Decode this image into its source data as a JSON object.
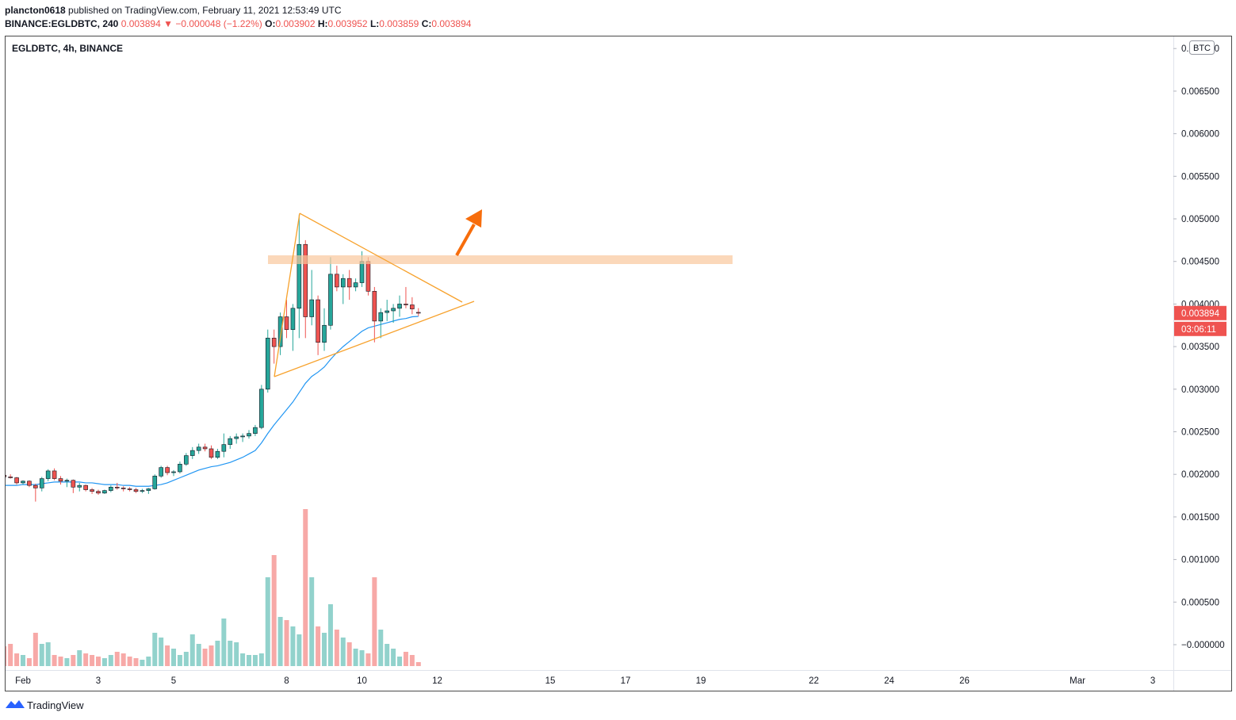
{
  "header": {
    "user": "plancton0618",
    "published": "published on TradingView.com, February 11, 2021 12:53:49 UTC",
    "symbol": "BINANCE:EGLDBTC, 240",
    "arrow": "▼",
    "change": "−0.000048",
    "change_pct": "(−1.22%)",
    "o_label": "O:",
    "h_label": "H:",
    "l_label": "L:",
    "c_label": "C:"
  },
  "chart_data": {
    "type": "candlestick",
    "legend_title": "EGLDBTC, 4h, BINANCE",
    "currency": "BTC",
    "countdown": "03:06:11",
    "up_color": "#26a69a",
    "down_color": "#ef5350",
    "ma_color": "#2196f3",
    "ylim": [
      -0.000298,
      0.007151
    ],
    "yticks": [
      {
        "value": 0,
        "label": "−0.000000"
      },
      {
        "value": 0.0005,
        "label": "0.000500"
      },
      {
        "value": 0.001,
        "label": "0.001000"
      },
      {
        "value": 0.0015,
        "label": "0.001500"
      },
      {
        "value": 0.002,
        "label": "0.002000"
      },
      {
        "value": 0.0025,
        "label": "0.002500"
      },
      {
        "value": 0.003,
        "label": "0.003000"
      },
      {
        "value": 0.0035,
        "label": "0.003500"
      },
      {
        "value": 0.004,
        "label": "0.004000"
      },
      {
        "value": 0.0045,
        "label": "0.004500"
      },
      {
        "value": 0.005,
        "label": "0.005000"
      },
      {
        "value": 0.0055,
        "label": "0.005500"
      },
      {
        "value": 0.006,
        "label": "0.006000"
      },
      {
        "value": 0.0065,
        "label": "0.006500"
      },
      {
        "value": 0.007,
        "label": "0.007000"
      }
    ],
    "categories": [
      null,
      null,
      null,
      "Feb",
      null,
      null,
      null,
      null,
      null,
      null,
      null,
      null,
      null,
      null,
      null,
      "3",
      null,
      null,
      null,
      null,
      null,
      null,
      null,
      null,
      null,
      null,
      null,
      "5",
      null,
      null,
      null,
      null,
      null,
      null,
      null,
      null,
      null,
      null,
      null,
      null,
      null,
      null,
      null,
      null,
      null,
      "8",
      null,
      null,
      null,
      null,
      null,
      null,
      null,
      null,
      null,
      null,
      null,
      "10",
      null,
      null,
      null,
      null,
      null,
      null,
      null,
      null,
      null,
      null,
      null,
      "12",
      null,
      null,
      null,
      null,
      null,
      null,
      null,
      null,
      null,
      null,
      null,
      null,
      null,
      null,
      null,
      null,
      null,
      "15",
      null,
      null,
      null,
      null,
      null,
      null,
      null,
      null,
      null,
      null,
      null,
      "17",
      null,
      null,
      null,
      null,
      null,
      null,
      null,
      null,
      null,
      null,
      null,
      "19",
      null,
      null,
      null,
      null,
      null,
      null,
      null,
      null,
      null,
      null,
      null,
      null,
      null,
      null,
      null,
      null,
      null,
      "22",
      null,
      null,
      null,
      null,
      null,
      null,
      null,
      null,
      null,
      null,
      null,
      "24",
      null,
      null,
      null,
      null,
      null,
      null,
      null,
      null,
      null,
      null,
      null,
      "26",
      null,
      null,
      null,
      null,
      null,
      null,
      null,
      null,
      null,
      null,
      null,
      null,
      null,
      null,
      null,
      null,
      null,
      "Mar",
      null,
      null,
      null,
      null,
      null,
      null,
      null,
      null,
      null,
      null,
      null,
      "3",
      null,
      null,
      null
    ],
    "open": [
      0.00199,
      0.00197,
      0.00196,
      0.0019,
      0.00192,
      0.00187,
      0.00184,
      0.00195,
      0.00204,
      0.00195,
      0.00192,
      0.00193,
      0.00185,
      0.00187,
      0.00182,
      0.0018,
      0.00178,
      0.00181,
      0.00185,
      0.00184,
      0.00183,
      0.00182,
      0.0018,
      0.00181,
      0.00183,
      0.00198,
      0.00208,
      0.00202,
      0.00203,
      0.00212,
      0.00222,
      0.00228,
      0.00232,
      0.0023,
      0.0022,
      0.00227,
      0.00235,
      0.00242,
      0.00244,
      0.00245,
      0.00248,
      0.00255,
      0.003,
      0.0036,
      0.0035,
      0.00385,
      0.0037,
      0.00395,
      0.0047,
      0.00385,
      0.00405,
      0.00355,
      0.00375,
      0.00435,
      0.0042,
      0.0043,
      0.0042,
      0.00425,
      0.0045,
      0.00415,
      0.0038,
      0.0039,
      0.00392,
      0.00395,
      0.004,
      0.00399,
      0.003902,
      null,
      null,
      null,
      null,
      null,
      null,
      null,
      null,
      null,
      null,
      null,
      null,
      null,
      null,
      null,
      null,
      null,
      null,
      null,
      null,
      null,
      null,
      null,
      null,
      null,
      null,
      null,
      null,
      null,
      null,
      null,
      null,
      null,
      null,
      null,
      null,
      null,
      null,
      null,
      null,
      null,
      null,
      null,
      null,
      null,
      null,
      null,
      null,
      null,
      null,
      null,
      null,
      null,
      null,
      null,
      null,
      null,
      null,
      null,
      null,
      null,
      null,
      null,
      null,
      null,
      null,
      null,
      null,
      null,
      null,
      null,
      null,
      null,
      null,
      null,
      null,
      null,
      null,
      null,
      null,
      null,
      null,
      null,
      null,
      null,
      null,
      null,
      null,
      null,
      null,
      null,
      null,
      null,
      null,
      null,
      null,
      null,
      null,
      null,
      null,
      null,
      null,
      null,
      null,
      null,
      null,
      null,
      null,
      null,
      null,
      null,
      null,
      null,
      null,
      null,
      null,
      null,
      null,
      null,
      null
    ],
    "high": [
      0.002,
      0.002,
      0.00197,
      0.00193,
      0.00193,
      0.00189,
      0.00197,
      0.00206,
      0.00207,
      0.00198,
      0.00195,
      0.00194,
      0.0019,
      0.00188,
      0.00184,
      0.00182,
      0.00182,
      0.00187,
      0.0019,
      0.00186,
      0.00185,
      0.00184,
      0.00183,
      0.00184,
      0.002,
      0.0021,
      0.0021,
      0.00205,
      0.00215,
      0.00225,
      0.00232,
      0.00236,
      0.00236,
      0.00234,
      0.0023,
      0.00248,
      0.00245,
      0.00248,
      0.00248,
      0.00252,
      0.00258,
      0.00305,
      0.0037,
      0.0037,
      0.0039,
      0.00405,
      0.004,
      0.00505,
      0.00475,
      0.0044,
      0.0041,
      0.00395,
      0.00455,
      0.00445,
      0.00435,
      0.0044,
      0.0043,
      0.00462,
      0.00455,
      0.0042,
      0.00395,
      0.00405,
      0.004,
      0.0041,
      0.0042,
      0.00408,
      0.003952,
      null,
      null,
      null,
      null,
      null,
      null,
      null,
      null,
      null,
      null,
      null,
      null,
      null,
      null,
      null,
      null,
      null,
      null,
      null,
      null,
      null,
      null,
      null,
      null,
      null,
      null,
      null,
      null,
      null,
      null,
      null,
      null,
      null,
      null,
      null,
      null,
      null,
      null,
      null,
      null,
      null,
      null,
      null,
      null,
      null,
      null,
      null,
      null,
      null,
      null,
      null,
      null,
      null,
      null,
      null,
      null,
      null,
      null,
      null,
      null,
      null,
      null,
      null,
      null,
      null,
      null,
      null,
      null,
      null,
      null,
      null,
      null,
      null,
      null,
      null,
      null,
      null,
      null,
      null,
      null,
      null,
      null,
      null,
      null,
      null,
      null,
      null,
      null,
      null,
      null,
      null,
      null,
      null,
      null,
      null,
      null,
      null,
      null,
      null,
      null,
      null,
      null,
      null,
      null,
      null,
      null,
      null,
      null,
      null,
      null,
      null,
      null,
      null,
      null,
      null,
      null,
      null,
      null,
      null,
      null
    ],
    "low": [
      0.00196,
      0.00195,
      0.00188,
      0.00188,
      0.00185,
      0.00168,
      0.0018,
      0.00192,
      0.00193,
      0.00188,
      0.00185,
      0.00178,
      0.0018,
      0.0018,
      0.00177,
      0.00176,
      0.00177,
      0.00179,
      0.00182,
      0.0018,
      0.0018,
      0.00178,
      0.00178,
      0.00177,
      0.00182,
      0.00196,
      0.00199,
      0.00198,
      0.00201,
      0.0021,
      0.00218,
      0.00224,
      0.00227,
      0.00218,
      0.00218,
      0.0022,
      0.0023,
      0.00236,
      0.00238,
      0.00242,
      0.00245,
      0.00253,
      0.00296,
      0.0033,
      0.0034,
      0.0036,
      0.00345,
      0.0036,
      0.0036,
      0.00375,
      0.0034,
      0.00345,
      0.0037,
      0.00415,
      0.004,
      0.00405,
      0.00415,
      0.0042,
      0.0041,
      0.00355,
      0.0036,
      0.0038,
      0.00378,
      0.00385,
      0.00395,
      0.00388,
      0.003859,
      null,
      null,
      null,
      null,
      null,
      null,
      null,
      null,
      null,
      null,
      null,
      null,
      null,
      null,
      null,
      null,
      null,
      null,
      null,
      null,
      null,
      null,
      null,
      null,
      null,
      null,
      null,
      null,
      null,
      null,
      null,
      null,
      null,
      null,
      null,
      null,
      null,
      null,
      null,
      null,
      null,
      null,
      null,
      null,
      null,
      null,
      null,
      null,
      null,
      null,
      null,
      null,
      null,
      null,
      null,
      null,
      null,
      null,
      null,
      null,
      null,
      null,
      null,
      null,
      null,
      null,
      null,
      null,
      null,
      null,
      null,
      null,
      null,
      null,
      null,
      null,
      null,
      null,
      null,
      null,
      null,
      null,
      null,
      null,
      null,
      null,
      null,
      null,
      null,
      null,
      null,
      null,
      null,
      null,
      null,
      null,
      null,
      null,
      null,
      null,
      null,
      null,
      null,
      null,
      null,
      null,
      null,
      null,
      null,
      null,
      null,
      null,
      null,
      null,
      null,
      null,
      null,
      null,
      null,
      null
    ],
    "close": [
      0.00197,
      0.00196,
      0.0019,
      0.00192,
      0.00187,
      0.00184,
      0.00195,
      0.00204,
      0.00195,
      0.00192,
      0.00193,
      0.00185,
      0.00187,
      0.00182,
      0.0018,
      0.00178,
      0.00181,
      0.00185,
      0.00184,
      0.00183,
      0.00182,
      0.0018,
      0.00181,
      0.00183,
      0.00198,
      0.00208,
      0.00202,
      0.00203,
      0.00212,
      0.00222,
      0.00228,
      0.00232,
      0.0023,
      0.0022,
      0.00227,
      0.00235,
      0.00242,
      0.00244,
      0.00245,
      0.00248,
      0.00255,
      0.003,
      0.0036,
      0.0035,
      0.00385,
      0.0037,
      0.00395,
      0.0047,
      0.00385,
      0.00405,
      0.00355,
      0.00375,
      0.00435,
      0.0042,
      0.0043,
      0.0042,
      0.00425,
      0.0045,
      0.00415,
      0.0038,
      0.0039,
      0.00392,
      0.00395,
      0.004,
      0.00399,
      0.003942,
      0.003894,
      null,
      null,
      null,
      null,
      null,
      null,
      null,
      null,
      null,
      null,
      null,
      null,
      null,
      null,
      null,
      null,
      null,
      null,
      null,
      null,
      null,
      null,
      null,
      null,
      null,
      null,
      null,
      null,
      null,
      null,
      null,
      null,
      null,
      null,
      null,
      null,
      null,
      null,
      null,
      null,
      null,
      null,
      null,
      null,
      null,
      null,
      null,
      null,
      null,
      null,
      null,
      null,
      null,
      null,
      null,
      null,
      null,
      null,
      null,
      null,
      null,
      null,
      null,
      null,
      null,
      null,
      null,
      null,
      null,
      null,
      null,
      null,
      null,
      null,
      null,
      null,
      null,
      null,
      null,
      null,
      null,
      null,
      null,
      null,
      null,
      null,
      null,
      null,
      null,
      null,
      null,
      null,
      null,
      null,
      null,
      null,
      null,
      null,
      null,
      null,
      null,
      null,
      null,
      null,
      null,
      null,
      null,
      null,
      null,
      null,
      null,
      null,
      null,
      null,
      null,
      null,
      null,
      null,
      null,
      null
    ],
    "ma": [
      0.00187,
      0.00187,
      0.00187,
      0.00188,
      0.00188,
      0.00188,
      0.00189,
      0.0019,
      0.00191,
      0.00191,
      0.00191,
      0.00191,
      0.00191,
      0.0019,
      0.0019,
      0.00189,
      0.00188,
      0.00188,
      0.00188,
      0.00187,
      0.00187,
      0.00186,
      0.00186,
      0.00186,
      0.00187,
      0.00188,
      0.0019,
      0.00193,
      0.00196,
      0.00199,
      0.00202,
      0.00205,
      0.00207,
      0.00209,
      0.0021,
      0.00212,
      0.00214,
      0.00217,
      0.0022,
      0.00224,
      0.00228,
      0.00237,
      0.00248,
      0.00258,
      0.00267,
      0.00276,
      0.00285,
      0.00296,
      0.00307,
      0.00315,
      0.0032,
      0.00326,
      0.00335,
      0.00343,
      0.0035,
      0.00356,
      0.00362,
      0.00368,
      0.00372,
      0.00374,
      0.00376,
      0.00378,
      0.0038,
      0.00382,
      0.00383,
      0.00385,
      0.003855,
      null,
      null,
      null,
      null,
      null,
      null,
      null,
      null,
      null,
      null,
      null,
      null,
      null,
      null,
      null,
      null,
      null,
      null,
      null,
      null,
      null,
      null,
      null,
      null,
      null,
      null,
      null,
      null,
      null,
      null,
      null,
      null,
      null,
      null,
      null,
      null,
      null,
      null,
      null,
      null,
      null,
      null,
      null,
      null,
      null,
      null,
      null,
      null,
      null,
      null,
      null,
      null,
      null,
      null,
      null,
      null,
      null,
      null,
      null,
      null,
      null,
      null,
      null,
      null,
      null,
      null,
      null,
      null,
      null,
      null,
      null,
      null,
      null,
      null,
      null,
      null,
      null,
      null,
      null,
      null,
      null,
      null,
      null,
      null,
      null,
      null,
      null,
      null,
      null,
      null,
      null,
      null,
      null,
      null,
      null,
      null,
      null,
      null,
      null,
      null,
      null,
      null,
      null,
      null,
      null,
      null,
      null,
      null,
      null,
      null,
      null,
      null,
      null,
      null,
      null,
      null,
      null,
      null,
      null,
      null
    ],
    "volume": [
      25,
      28,
      16,
      14,
      10,
      42,
      28,
      30,
      14,
      12,
      10,
      14,
      20,
      16,
      14,
      12,
      10,
      14,
      18,
      16,
      12,
      10,
      8,
      12,
      42,
      36,
      26,
      22,
      14,
      18,
      40,
      28,
      22,
      26,
      32,
      60,
      32,
      30,
      16,
      14,
      14,
      16,
      112,
      140,
      62,
      58,
      50,
      40,
      198,
      112,
      50,
      42,
      78,
      46,
      36,
      30,
      22,
      20,
      16,
      112,
      46,
      28,
      22,
      12,
      18,
      14,
      5,
      null,
      null,
      null,
      null,
      null,
      null,
      null,
      null,
      null,
      null,
      null,
      null,
      null,
      null,
      null,
      null,
      null,
      null,
      null,
      null,
      null,
      null,
      null,
      null,
      null,
      null,
      null,
      null,
      null,
      null,
      null,
      null,
      null,
      null,
      null,
      null,
      null,
      null,
      null,
      null,
      null,
      null,
      null,
      null,
      null,
      null,
      null,
      null,
      null,
      null,
      null,
      null,
      null,
      null,
      null,
      null,
      null,
      null,
      null,
      null,
      null,
      null,
      null,
      null,
      null,
      null,
      null,
      null,
      null,
      null,
      null,
      null,
      null,
      null,
      null,
      null,
      null,
      null,
      null,
      null,
      null,
      null,
      null,
      null,
      null,
      null,
      null,
      null,
      null,
      null,
      null,
      null,
      null,
      null,
      null,
      null,
      null,
      null,
      null,
      null,
      null,
      null,
      null,
      null,
      null,
      null,
      null,
      null,
      null,
      null,
      null,
      null,
      null,
      null,
      null,
      null,
      null,
      null,
      null,
      null
    ]
  },
  "footer": {
    "brand": "TradingView"
  }
}
